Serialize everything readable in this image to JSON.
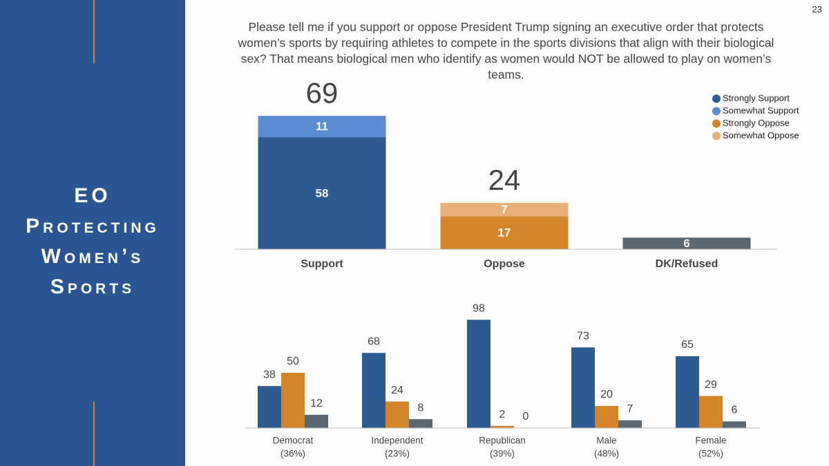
{
  "slide": {
    "title_lines": [
      "EO",
      "Protecting",
      "Women’s",
      "Sports"
    ],
    "page_number": "23",
    "background": "#2b5592",
    "accent": "#d4852a"
  },
  "chart_data": [
    {
      "type": "stacked-bar",
      "title": "Please tell me if you support or oppose President Trump signing an executive order that protects women’s sports by requiring athletes to compete in the sports divisions that align with their biological sex? That means biological men who identify as women would NOT be allowed to play on women’s teams.",
      "categories": [
        "Support",
        "Oppose",
        "DK/Refused"
      ],
      "totals": [
        69,
        24,
        null
      ],
      "series": [
        {
          "name": "Strongly Support",
          "color": "#2e5a92",
          "values": [
            58,
            null,
            null
          ]
        },
        {
          "name": "Somewhat Support",
          "color": "#5b8bd0",
          "values": [
            11,
            null,
            null
          ]
        },
        {
          "name": "Strongly Oppose",
          "color": "#d4852a",
          "values": [
            null,
            17,
            null
          ]
        },
        {
          "name": "Somewhat Oppose",
          "color": "#e8b078",
          "values": [
            null,
            7,
            null
          ]
        },
        {
          "color": "#5a6670",
          "values": [
            null,
            null,
            6
          ]
        }
      ],
      "ylim": [
        0,
        100
      ],
      "legend": "upper right"
    },
    {
      "type": "grouped-bar",
      "categories": [
        "Democrat",
        "Independent",
        "Republican",
        "Male",
        "Female"
      ],
      "category_notes": [
        "(36%)",
        "(23%)",
        "(39%)",
        "(48%)",
        "(52%)"
      ],
      "series": [
        {
          "color": "#2e5a92",
          "values": [
            38,
            68,
            98,
            73,
            65
          ]
        },
        {
          "color": "#d4852a",
          "values": [
            50,
            24,
            2,
            20,
            29
          ]
        },
        {
          "color": "#5a6670",
          "values": [
            12,
            8,
            0,
            7,
            6
          ]
        }
      ],
      "ylim": [
        0,
        100
      ]
    }
  ]
}
